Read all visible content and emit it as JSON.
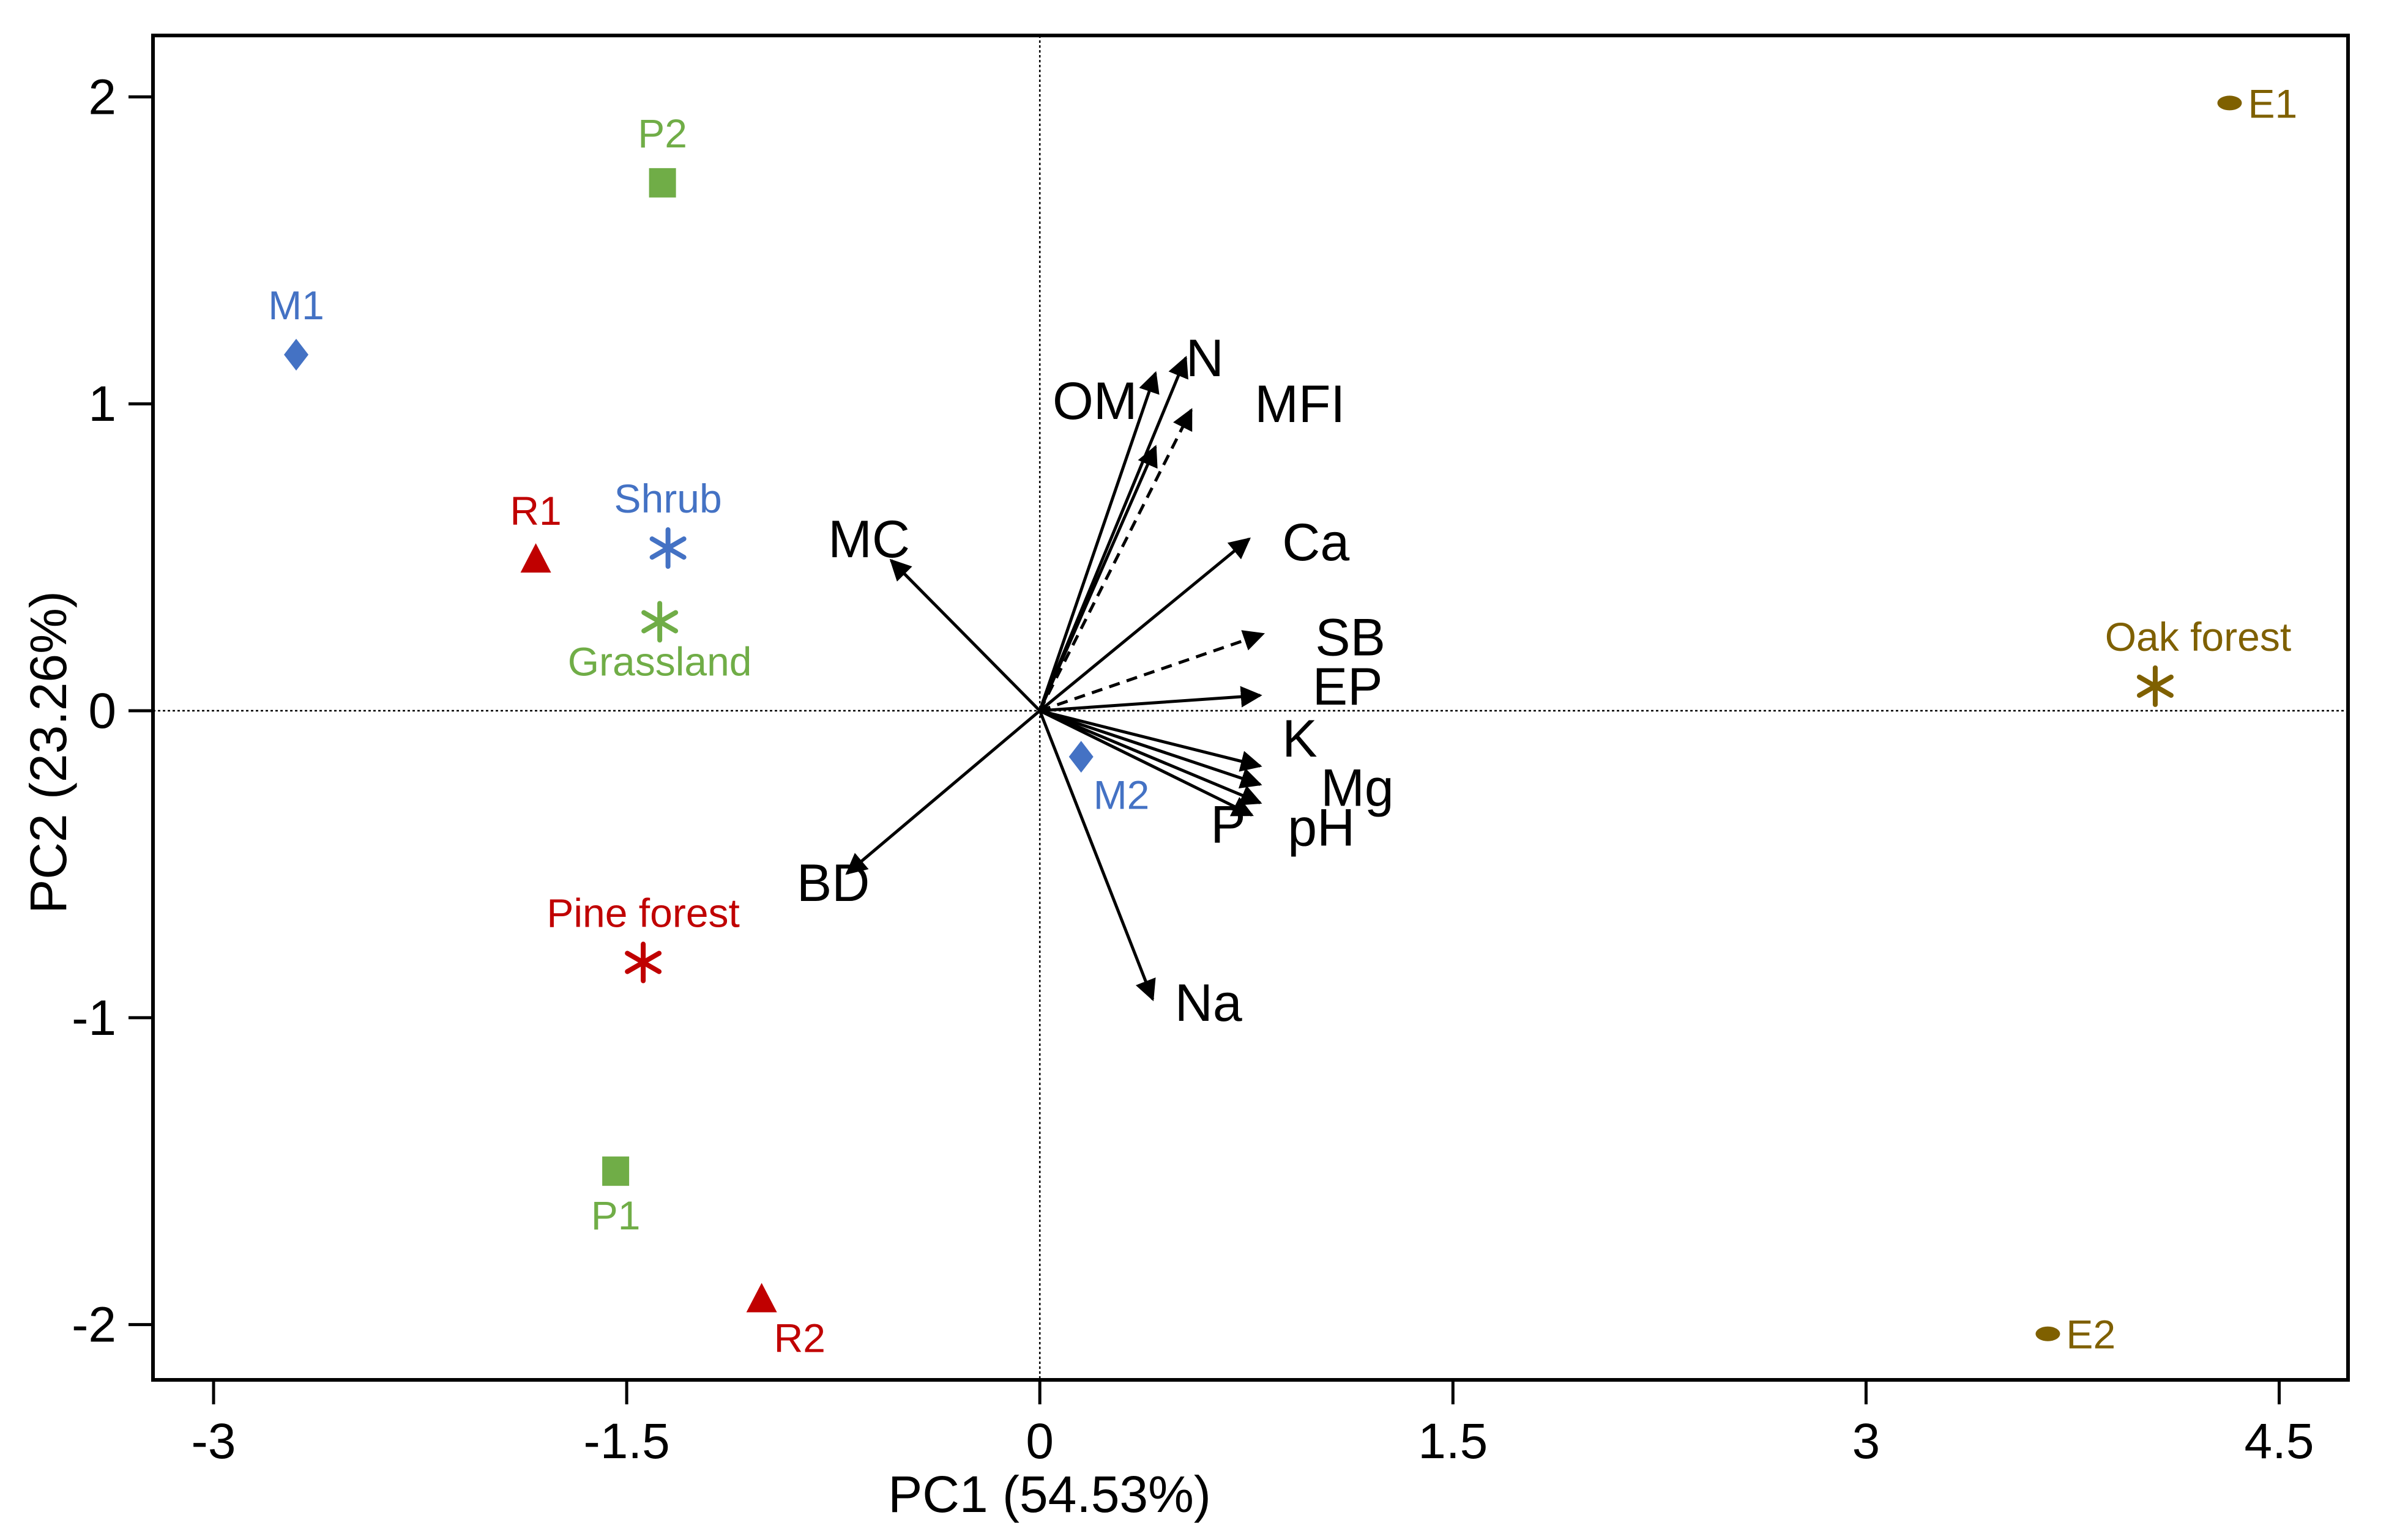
{
  "chart_data": {
    "type": "scatter",
    "subtype": "pca-biplot",
    "title": "",
    "xlabel": "PC1 (54.53%)",
    "ylabel": "PC2 (23.26%)",
    "xlim": [
      -3.22,
      4.75
    ],
    "ylim": [
      -2.18,
      2.2
    ],
    "xticks": [
      {
        "value": -3,
        "label": "-3"
      },
      {
        "value": -1.5,
        "label": "-1.5"
      },
      {
        "value": 0,
        "label": "0"
      },
      {
        "value": 1.5,
        "label": "1.5"
      },
      {
        "value": 3,
        "label": "3"
      },
      {
        "value": 4.5,
        "label": "4.5"
      }
    ],
    "yticks": [
      {
        "value": 2,
        "label": "2"
      },
      {
        "value": 1,
        "label": "1"
      },
      {
        "value": 0,
        "label": "0"
      },
      {
        "value": -1,
        "label": "-1"
      },
      {
        "value": -2,
        "label": "-2"
      }
    ],
    "reference_lines": {
      "x": 0,
      "y": 0,
      "style": "dotted"
    },
    "colors": {
      "pine": "#c00000",
      "grass": "#70ad47",
      "shrub": "#4472c4",
      "oak": "#7f6000",
      "axis": "#000000"
    },
    "samples": [
      {
        "label": "E1",
        "x": 4.32,
        "y": 1.98,
        "marker": "ellipse",
        "color": "oak",
        "label_pos": "right"
      },
      {
        "label": "E2",
        "x": 3.66,
        "y": -2.03,
        "marker": "ellipse",
        "color": "oak",
        "label_pos": "right"
      },
      {
        "label": "P2",
        "x": -1.37,
        "y": 1.72,
        "marker": "square",
        "color": "grass",
        "label_pos": "above"
      },
      {
        "label": "P1",
        "x": -1.54,
        "y": -1.5,
        "marker": "square",
        "color": "grass",
        "label_pos": "below"
      },
      {
        "label": "M1",
        "x": -2.7,
        "y": 1.16,
        "marker": "diamond",
        "color": "shrub",
        "label_pos": "above"
      },
      {
        "label": "M2",
        "x": 0.15,
        "y": -0.15,
        "marker": "diamond",
        "color": "shrub",
        "label_pos": "below-right"
      },
      {
        "label": "R1",
        "x": -1.83,
        "y": 0.49,
        "marker": "triangle",
        "color": "pine",
        "label_pos": "above"
      },
      {
        "label": "R2",
        "x": -1.01,
        "y": -1.92,
        "marker": "triangle",
        "color": "pine",
        "label_pos": "below-right"
      }
    ],
    "group_centroids": [
      {
        "label": "Shrub",
        "x": -1.35,
        "y": 0.53,
        "color": "shrub",
        "label_pos": "above"
      },
      {
        "label": "Grassland",
        "x": -1.38,
        "y": 0.29,
        "color": "grass",
        "label_pos": "below"
      },
      {
        "label": "Pine forest",
        "x": -1.44,
        "y": -0.82,
        "color": "pine",
        "label_pos": "above"
      },
      {
        "label": "Oak forest",
        "x": 4.05,
        "y": 0.08,
        "color": "oak",
        "label_pos": "above"
      }
    ],
    "loadings": [
      {
        "label": "OM",
        "x": 0.42,
        "y": 1.1,
        "dashed": false,
        "lx": 0.2,
        "ly": 1.01
      },
      {
        "label": "OM",
        "x": 0.42,
        "y": 0.86,
        "dashed": false,
        "show_label": false
      },
      {
        "label": "N",
        "x": 0.53,
        "y": 1.15,
        "dashed": false,
        "lx": 0.53,
        "ly": 1.15
      },
      {
        "label": "MFI",
        "x": 0.55,
        "y": 0.98,
        "dashed": true,
        "lx": 0.78,
        "ly": 1.0
      },
      {
        "label": "MC",
        "x": -0.54,
        "y": 0.49,
        "dashed": false,
        "lx": -0.62,
        "ly": 0.56
      },
      {
        "label": "Ca",
        "x": 0.76,
        "y": 0.56,
        "dashed": false,
        "lx": 0.88,
        "ly": 0.55
      },
      {
        "label": "SB",
        "x": 0.81,
        "y": 0.25,
        "dashed": true,
        "lx": 1.0,
        "ly": 0.24
      },
      {
        "label": "EP",
        "x": 0.8,
        "y": 0.05,
        "dashed": false,
        "lx": 0.99,
        "ly": 0.08
      },
      {
        "label": "K",
        "x": 0.8,
        "y": -0.18,
        "dashed": false,
        "lx": 0.88,
        "ly": -0.09
      },
      {
        "label": "Mg",
        "x": 0.8,
        "y": -0.24,
        "dashed": false,
        "lx": 1.02,
        "ly": -0.25
      },
      {
        "label": "pH",
        "x": 0.8,
        "y": -0.3,
        "dashed": false,
        "lx": 0.9,
        "ly": -0.38
      },
      {
        "label": "P",
        "x": 0.77,
        "y": -0.34,
        "dashed": false,
        "lx": 0.62,
        "ly": -0.37
      },
      {
        "label": "BD",
        "x": -0.7,
        "y": -0.53,
        "dashed": false,
        "lx": -0.75,
        "ly": -0.56
      },
      {
        "label": "Na",
        "x": 0.41,
        "y": -0.94,
        "dashed": false,
        "lx": 0.49,
        "ly": -0.95
      }
    ]
  }
}
